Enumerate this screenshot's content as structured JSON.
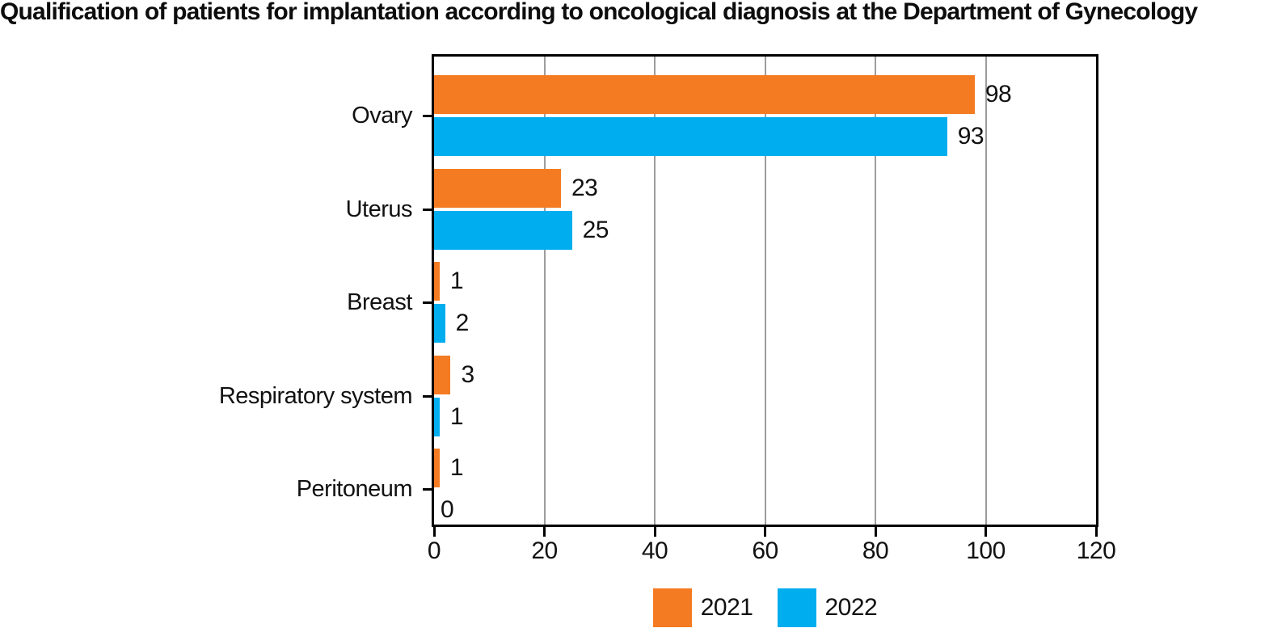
{
  "title": "Qualification of patients for implantation according to oncological diagnosis at the Department of Gynecology",
  "chart_data": {
    "type": "bar",
    "orientation": "horizontal",
    "title": "Qualification of patients for implantation according to oncological diagnosis at the Department of Gynecology",
    "categories": [
      "Ovary",
      "Uterus",
      "Breast",
      "Respiratory system",
      "Peritoneum"
    ],
    "series": [
      {
        "name": "2021",
        "color": "#f47b21",
        "values": [
          98,
          23,
          1,
          3,
          1
        ]
      },
      {
        "name": "2022",
        "color": "#00adee",
        "values": [
          93,
          25,
          2,
          1,
          0
        ]
      }
    ],
    "xlim": [
      0,
      120
    ],
    "x_ticks": [
      "0",
      "20",
      "40",
      "60",
      "80",
      "100",
      "120"
    ],
    "grid": "vertical-gray-lines-at-ticks",
    "value_labels": true,
    "legend_position": "bottom-center"
  },
  "legend": [
    {
      "label": "2021",
      "color": "#f47b21"
    },
    {
      "label": "2022",
      "color": "#00adee"
    }
  ],
  "colors": {
    "bar_2021": "#f47b21",
    "bar_2022": "#00adee",
    "grid": "#9d9d9d",
    "axis": "#000000",
    "text": "#111111",
    "background": "#ffffff"
  }
}
